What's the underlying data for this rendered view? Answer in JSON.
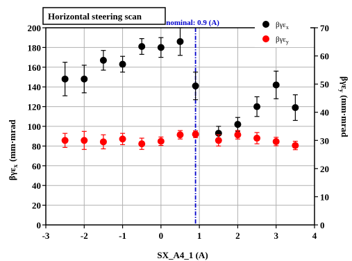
{
  "chart_data": {
    "type": "scatter",
    "title": "Horizontal steering scan",
    "xlabel": "SX_A4_1 (A)",
    "ylabel_left_main": "βγε",
    "ylabel_left_sub": "x",
    "ylabel_left_unit": "(mm·mrad",
    "ylabel_right_main": "βγε",
    "ylabel_right_sub": "y",
    "ylabel_right_unit": "(mm·mrad",
    "xlim": [
      -3,
      4
    ],
    "ylim_left": [
      0,
      200
    ],
    "ylim_right": [
      0,
      70
    ],
    "x_ticks": [
      -3,
      -2,
      -1,
      0,
      1,
      2,
      3,
      4
    ],
    "y_left_ticks": [
      0,
      20,
      40,
      60,
      80,
      100,
      120,
      140,
      160,
      180,
      200
    ],
    "y_right_ticks": [
      0,
      10,
      20,
      30,
      40,
      50,
      60,
      70
    ],
    "grid": true,
    "legend_position": "top-right",
    "reference_line": {
      "x": 0.9,
      "label": "nominal: 0.9 (A)",
      "color": "#0000cc"
    },
    "series": [
      {
        "name_main": "βγε",
        "name_sub": "x",
        "axis": "left",
        "color": "#000000",
        "x": [
          -2.5,
          -2,
          -1.5,
          -1,
          -0.5,
          0,
          0.5,
          0.9,
          1.5,
          2,
          2.5,
          3,
          3.5
        ],
        "y": [
          148,
          148,
          167,
          163,
          181,
          180,
          186,
          141,
          93,
          102,
          120,
          142,
          119
        ],
        "err": [
          17,
          14,
          10,
          8,
          8,
          10,
          14,
          14,
          7,
          7,
          10,
          14,
          13
        ]
      },
      {
        "name_main": "βγε",
        "name_sub": "y",
        "axis": "right",
        "color": "#ff0000",
        "x": [
          -2.5,
          -2,
          -1.5,
          -1,
          -0.5,
          0,
          0.5,
          0.9,
          1.5,
          2,
          2.5,
          3,
          3.5
        ],
        "y": [
          30,
          30,
          29.5,
          30.5,
          28.8,
          29.7,
          32,
          32.2,
          30,
          32,
          30.8,
          29.6,
          28.2
        ],
        "err": [
          2.5,
          3.2,
          2.5,
          2.0,
          2.0,
          1.5,
          1.5,
          1.2,
          2.0,
          1.5,
          2.0,
          1.5,
          1.5
        ]
      }
    ]
  }
}
